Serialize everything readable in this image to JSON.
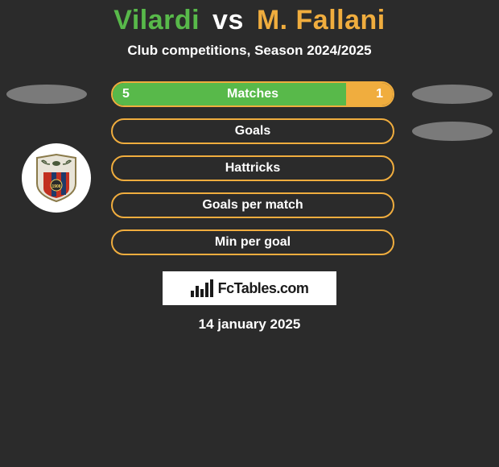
{
  "colors": {
    "p1": "#58b94a",
    "p2": "#f0ad3e",
    "accent": "#f0ad3e",
    "badge": "#7a7a7a",
    "bg": "#2b2b2b"
  },
  "title": {
    "player1": "Vilardi",
    "vs": "vs",
    "player2": "M. Fallani"
  },
  "subtitle": "Club competitions, Season 2024/2025",
  "rows": [
    {
      "label": "Matches",
      "left_value": "5",
      "right_value": "1",
      "left_pct": 83.3,
      "right_pct": 16.7,
      "show_values": true,
      "show_left_badge": true,
      "show_right_badge": true
    },
    {
      "label": "Goals",
      "left_value": "",
      "right_value": "",
      "left_pct": 0,
      "right_pct": 0,
      "show_values": false,
      "show_left_badge": false,
      "show_right_badge": true
    },
    {
      "label": "Hattricks",
      "left_value": "",
      "right_value": "",
      "left_pct": 0,
      "right_pct": 0,
      "show_values": false,
      "show_left_badge": false,
      "show_right_badge": false
    },
    {
      "label": "Goals per match",
      "left_value": "",
      "right_value": "",
      "left_pct": 0,
      "right_pct": 0,
      "show_values": false,
      "show_left_badge": false,
      "show_right_badge": false
    },
    {
      "label": "Min per goal",
      "left_value": "",
      "right_value": "",
      "left_pct": 0,
      "right_pct": 0,
      "show_values": false,
      "show_left_badge": false,
      "show_right_badge": false
    }
  ],
  "logo_text": "FcTables.com",
  "date": "14 january 2025",
  "club_crest": {
    "top_color": "#e8e4d8",
    "eagle_color": "#4a5a3a",
    "stripe_red": "#c23020",
    "stripe_blue": "#1e3a6a",
    "border": "#8a7a4a",
    "year": "1908"
  }
}
